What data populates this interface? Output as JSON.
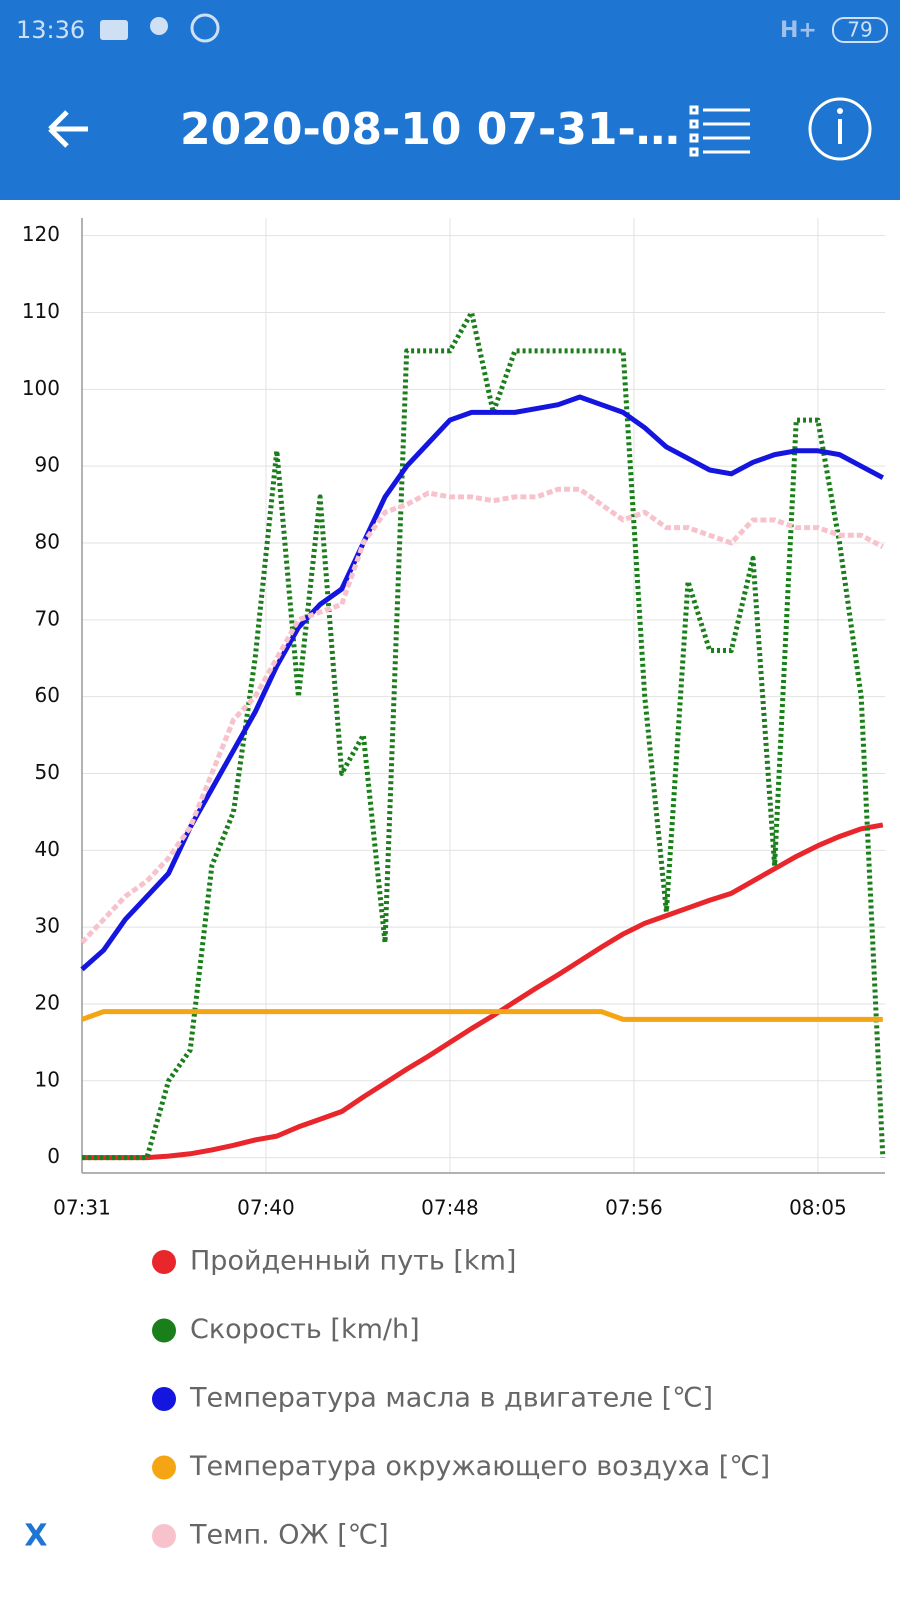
{
  "status_bar": {
    "time": "13:36",
    "network": "H+",
    "battery": "79"
  },
  "app_bar": {
    "title": "2020-08-10 07-31-…"
  },
  "chart_data": {
    "type": "line",
    "x": [
      0,
      1,
      2,
      3,
      4,
      5,
      6,
      7,
      8,
      9,
      10,
      11,
      12,
      13,
      14,
      15,
      16,
      17,
      18,
      19,
      20,
      21,
      22,
      23,
      24,
      25,
      26,
      27,
      28,
      29,
      30,
      31,
      32,
      33,
      34,
      35,
      36,
      37
    ],
    "xlim": [
      0,
      37.1
    ],
    "xticks": [
      {
        "value": 0,
        "label": "07:31"
      },
      {
        "value": 8.5,
        "label": "07:40"
      },
      {
        "value": 17,
        "label": "07:48"
      },
      {
        "value": 25.5,
        "label": "07:56"
      },
      {
        "value": 34,
        "label": "08:05"
      }
    ],
    "ylim": [
      -2,
      122.3
    ],
    "yticks": [
      0,
      10,
      20,
      30,
      40,
      50,
      60,
      70,
      80,
      90,
      100,
      110,
      120
    ],
    "grid": true,
    "series": [
      {
        "name": "Пройденный путь [km]",
        "color": "#e8262b",
        "style": "solid",
        "values": [
          0,
          0,
          0,
          0,
          0.2,
          0.5,
          1,
          1.6,
          2.3,
          2.8,
          4,
          5,
          6,
          7.9,
          9.7,
          11.5,
          13.2,
          15,
          16.8,
          18.5,
          20.3,
          22.1,
          23.8,
          25.6,
          27.4,
          29.1,
          30.5,
          31.5,
          32.5,
          33.5,
          34.4,
          36,
          37.6,
          39.2,
          40.6,
          41.8,
          42.8,
          43.3
        ]
      },
      {
        "name": "Скорость [km/h]",
        "color": "#1a7f1a",
        "style": "dotted",
        "values": [
          0,
          0,
          0,
          0,
          10,
          14,
          38,
          45,
          65,
          92,
          60,
          86,
          50,
          55,
          28,
          105,
          105,
          105,
          110,
          97,
          105,
          105,
          105,
          105,
          105,
          105,
          60,
          32,
          75,
          66,
          66,
          78,
          38,
          96,
          96,
          80,
          60,
          0
        ]
      },
      {
        "name": "Температура масла в двигателе [℃]",
        "color": "#1515e0",
        "style": "solid",
        "values": [
          24.5,
          27,
          31,
          34,
          37,
          43,
          48,
          53,
          58,
          64,
          69,
          72,
          74,
          80,
          86,
          90,
          93,
          96,
          97,
          97,
          97,
          97.5,
          98,
          99,
          98,
          97,
          95,
          92.5,
          91,
          89.5,
          89,
          90.5,
          91.5,
          92,
          92,
          91.5,
          90,
          88.5
        ]
      },
      {
        "name": "Температура окружающего воздуха [℃]",
        "color": "#f5a514",
        "style": "solid",
        "values": [
          18,
          19,
          19,
          19,
          19,
          19,
          19,
          19,
          19,
          19,
          19,
          19,
          19,
          19,
          19,
          19,
          19,
          19,
          19,
          19,
          19,
          19,
          19,
          19,
          19,
          18,
          18,
          18,
          18,
          18,
          18,
          18,
          18,
          18,
          18,
          18,
          18,
          18
        ]
      },
      {
        "name": "Темп. ОЖ [℃]",
        "color": "#f7c2cc",
        "style": "dashed",
        "values": [
          28,
          31,
          34,
          36,
          39,
          43,
          50,
          57,
          60,
          65,
          70,
          71,
          72,
          80,
          84,
          85,
          86.5,
          86,
          86,
          85.5,
          86,
          86,
          87,
          87,
          85,
          83,
          84,
          82,
          82,
          81,
          80,
          83,
          83,
          82,
          82,
          81,
          81,
          79.5
        ]
      }
    ]
  },
  "close_button": "X"
}
